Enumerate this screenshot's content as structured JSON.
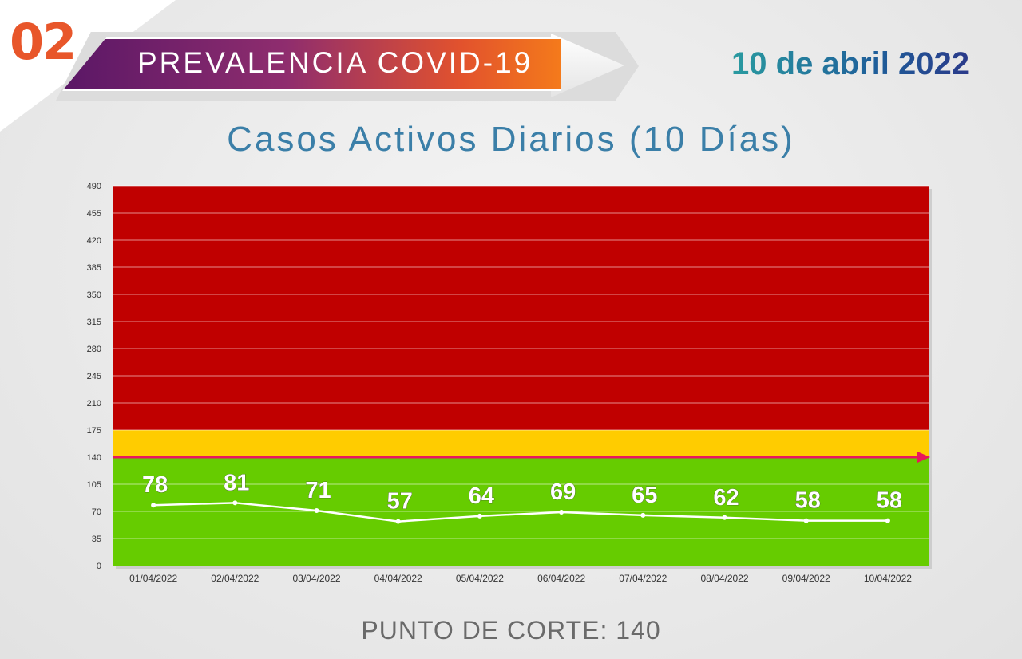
{
  "badge": {
    "number": "02"
  },
  "header": {
    "title": "PREVALENCIA COVID-19",
    "date": "10 de abril 2022"
  },
  "chart_data": {
    "type": "line",
    "title": "Casos Activos Diarios (10 Días)",
    "categories": [
      "01/04/2022",
      "02/04/2022",
      "03/04/2022",
      "04/04/2022",
      "05/04/2022",
      "06/04/2022",
      "07/04/2022",
      "08/04/2022",
      "09/04/2022",
      "10/04/2022"
    ],
    "series": [
      {
        "values": [
          78,
          81,
          71,
          57,
          64,
          69,
          65,
          62,
          58,
          58
        ]
      }
    ],
    "ylim": [
      0,
      490
    ],
    "yticks": [
      0,
      35,
      70,
      105,
      140,
      175,
      210,
      245,
      280,
      315,
      350,
      385,
      420,
      455,
      490
    ],
    "zones": [
      {
        "from": 0,
        "to": 140,
        "color": "#66cc00"
      },
      {
        "from": 140,
        "to": 175,
        "color": "#ffcc00"
      },
      {
        "from": 175,
        "to": 490,
        "color": "#c00000"
      }
    ],
    "cutoff": {
      "value": 140,
      "color": "#e8175d"
    },
    "line_color": "#ffffff",
    "grid": true
  },
  "footer": {
    "text": "PUNTO DE CORTE: 140"
  }
}
